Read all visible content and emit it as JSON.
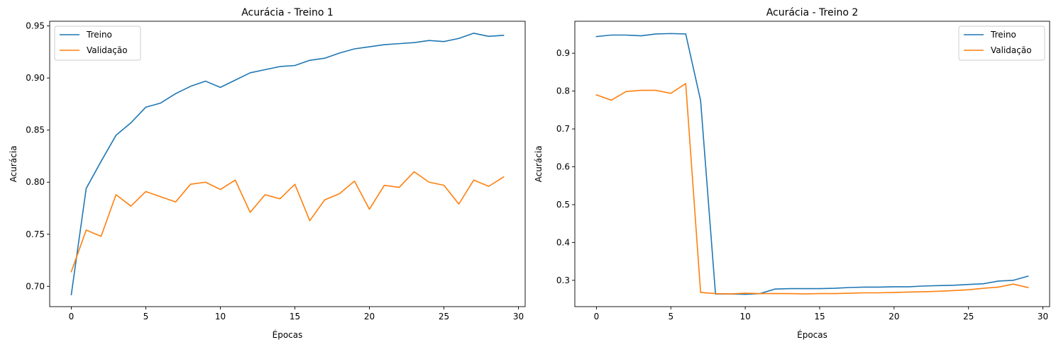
{
  "chart_data": [
    {
      "type": "line",
      "title": "Acurácia - Treino 1",
      "xlabel": "Épocas",
      "ylabel": "Acurácia",
      "xlim": [
        -1.45,
        30.45
      ],
      "ylim": [
        0.6805,
        0.9545
      ],
      "xticks": [
        0,
        5,
        10,
        15,
        20,
        25,
        30
      ],
      "yticks": [
        0.7,
        0.75,
        0.8,
        0.85,
        0.9,
        0.95
      ],
      "ytick_labels": [
        "0.70",
        "0.75",
        "0.80",
        "0.85",
        "0.90",
        "0.95"
      ],
      "grid": false,
      "legend": "upper left",
      "x": [
        0,
        1,
        2,
        3,
        4,
        5,
        6,
        7,
        8,
        9,
        10,
        11,
        12,
        13,
        14,
        15,
        16,
        17,
        18,
        19,
        20,
        21,
        22,
        23,
        24,
        25,
        26,
        27,
        28,
        29
      ],
      "series": [
        {
          "name": "Treino",
          "color": "#1f77b4",
          "values": [
            0.692,
            0.794,
            0.82,
            0.845,
            0.857,
            0.872,
            0.876,
            0.885,
            0.892,
            0.897,
            0.891,
            0.898,
            0.905,
            0.908,
            0.911,
            0.912,
            0.917,
            0.919,
            0.924,
            0.928,
            0.93,
            0.932,
            0.933,
            0.934,
            0.936,
            0.935,
            0.938,
            0.943,
            0.94,
            0.941
          ]
        },
        {
          "name": "Validação",
          "color": "#ff7f0e",
          "values": [
            0.714,
            0.754,
            0.748,
            0.788,
            0.777,
            0.791,
            0.786,
            0.781,
            0.798,
            0.8,
            0.793,
            0.802,
            0.771,
            0.788,
            0.784,
            0.798,
            0.763,
            0.783,
            0.789,
            0.801,
            0.774,
            0.797,
            0.795,
            0.81,
            0.8,
            0.797,
            0.779,
            0.802,
            0.796,
            0.805
          ]
        }
      ]
    },
    {
      "type": "line",
      "title": "Acurácia - Treino 2",
      "xlabel": "Épocas",
      "ylabel": "Acurácia",
      "xlim": [
        -1.45,
        30.45
      ],
      "ylim": [
        0.2305,
        0.9845
      ],
      "xticks": [
        0,
        5,
        10,
        15,
        20,
        25,
        30
      ],
      "yticks": [
        0.3,
        0.4,
        0.5,
        0.6,
        0.7,
        0.8,
        0.9
      ],
      "ytick_labels": [
        "0.3",
        "0.4",
        "0.5",
        "0.6",
        "0.7",
        "0.8",
        "0.9"
      ],
      "grid": false,
      "legend": "upper right",
      "x": [
        0,
        1,
        2,
        3,
        4,
        5,
        6,
        7,
        8,
        9,
        10,
        11,
        12,
        13,
        14,
        15,
        16,
        17,
        18,
        19,
        20,
        21,
        22,
        23,
        24,
        25,
        26,
        27,
        28,
        29
      ],
      "series": [
        {
          "name": "Treino",
          "color": "#1f77b4",
          "values": [
            0.944,
            0.948,
            0.948,
            0.946,
            0.951,
            0.952,
            0.951,
            0.775,
            0.264,
            0.264,
            0.263,
            0.265,
            0.277,
            0.278,
            0.278,
            0.278,
            0.279,
            0.281,
            0.282,
            0.282,
            0.283,
            0.283,
            0.285,
            0.286,
            0.287,
            0.289,
            0.291,
            0.298,
            0.3,
            0.311
          ]
        },
        {
          "name": "Validação",
          "color": "#ff7f0e",
          "values": [
            0.79,
            0.776,
            0.799,
            0.802,
            0.802,
            0.794,
            0.82,
            0.268,
            0.265,
            0.264,
            0.266,
            0.265,
            0.265,
            0.265,
            0.264,
            0.265,
            0.265,
            0.266,
            0.267,
            0.267,
            0.268,
            0.269,
            0.27,
            0.271,
            0.273,
            0.275,
            0.279,
            0.282,
            0.29,
            0.281
          ]
        }
      ]
    }
  ]
}
